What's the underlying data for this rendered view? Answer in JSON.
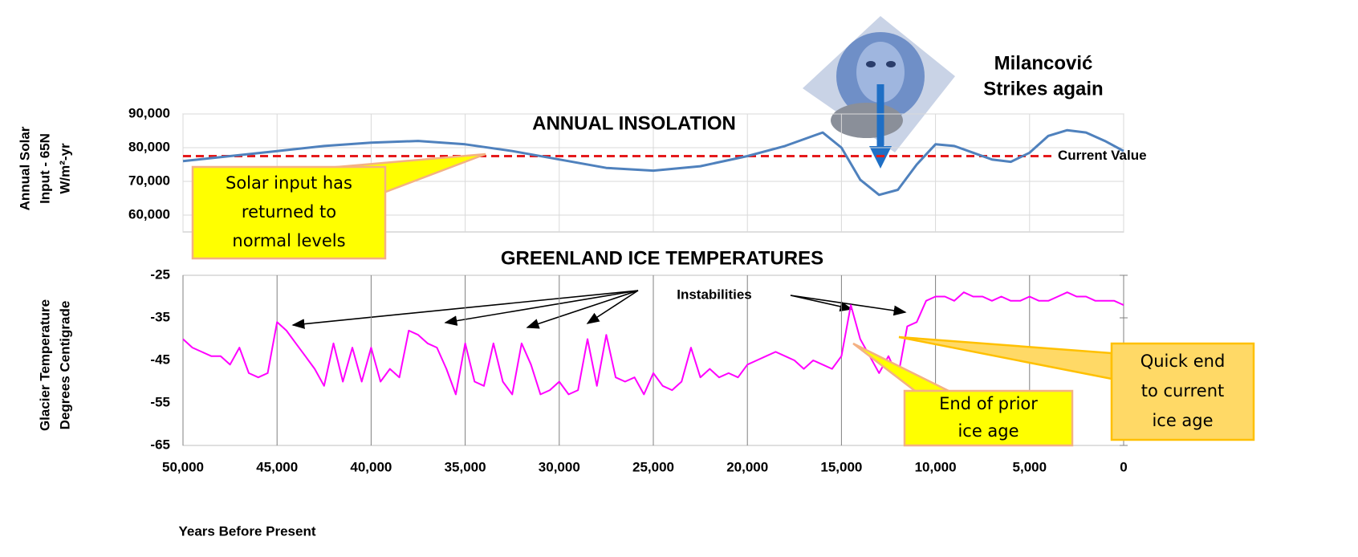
{
  "chart_data": [
    {
      "type": "line",
      "title": "ANNUAL INSOLATION",
      "ylabel": [
        "Annual Solar",
        "Input - 65N",
        "W/m²-yr"
      ],
      "x": [
        50000,
        47500,
        45000,
        42500,
        40000,
        37500,
        35000,
        32500,
        30000,
        27500,
        25000,
        22500,
        20000,
        18000,
        17000,
        16000,
        15000,
        14000,
        13000,
        12000,
        11000,
        10000,
        9000,
        8000,
        7000,
        6000,
        5000,
        4000,
        3000,
        2000,
        1000,
        0
      ],
      "values": [
        76000,
        77500,
        79000,
        80500,
        81500,
        82000,
        81000,
        79000,
        76500,
        74000,
        73200,
        74500,
        77500,
        80500,
        82500,
        84500,
        80000,
        70500,
        66000,
        67500,
        75000,
        81000,
        80500,
        78500,
        76500,
        75800,
        78500,
        83500,
        85200,
        84500,
        82000,
        79000
      ],
      "color": "#4f81bd",
      "xlim": [
        50000,
        0
      ],
      "ylim": [
        55000,
        90000
      ],
      "yticks": [
        {
          "value": 60000,
          "label": "60,000"
        },
        {
          "value": 70000,
          "label": "70,000"
        },
        {
          "value": 80000,
          "label": "80,000"
        },
        {
          "value": 90000,
          "label": "90,000"
        }
      ],
      "grid": "both",
      "reference_line": {
        "value": 77500,
        "label": "Current Value",
        "color": "#e41a1c"
      },
      "annotations": [
        {
          "lines": [
            "Solar input has",
            "returned to",
            "normal levels"
          ]
        },
        {
          "lines": [
            "Milancović",
            "Strikes again"
          ]
        }
      ]
    },
    {
      "type": "line",
      "title": "GREENLAND ICE TEMPERATURES",
      "ylabel": [
        "Glacier Temperature",
        "Degrees Centigrade"
      ],
      "xlabel": "Years Before Present",
      "x": [
        50000,
        49500,
        49000,
        48500,
        48000,
        47500,
        47000,
        46500,
        46000,
        45500,
        45000,
        44500,
        44000,
        43500,
        43000,
        42500,
        42000,
        41500,
        41000,
        40500,
        40000,
        39500,
        39000,
        38500,
        38000,
        37500,
        37000,
        36500,
        36000,
        35500,
        35000,
        34500,
        34000,
        33500,
        33000,
        32500,
        32000,
        31500,
        31000,
        30500,
        30000,
        29500,
        29000,
        28500,
        28000,
        27500,
        27000,
        26500,
        26000,
        25500,
        25000,
        24500,
        24000,
        23500,
        23000,
        22500,
        22000,
        21500,
        21000,
        20500,
        20000,
        19500,
        19000,
        18500,
        18000,
        17500,
        17000,
        16500,
        16000,
        15500,
        15000,
        14500,
        14000,
        13500,
        13000,
        12500,
        12000,
        11500,
        11000,
        10500,
        10000,
        9500,
        9000,
        8500,
        8000,
        7500,
        7000,
        6500,
        6000,
        5500,
        5000,
        4500,
        4000,
        3500,
        3000,
        2500,
        2000,
        1500,
        1000,
        500,
        0
      ],
      "values": [
        -40,
        -42,
        -43,
        -44,
        -44,
        -46,
        -42,
        -48,
        -49,
        -48,
        -36,
        -38,
        -41,
        -44,
        -47,
        -51,
        -41,
        -50,
        -42,
        -50,
        -42,
        -50,
        -47,
        -49,
        -38,
        -39,
        -41,
        -42,
        -47,
        -53,
        -41,
        -50,
        -51,
        -41,
        -50,
        -53,
        -41,
        -46,
        -53,
        -52,
        -50,
        -53,
        -52,
        -40,
        -51,
        -39,
        -49,
        -50,
        -49,
        -53,
        -48,
        -51,
        -52,
        -50,
        -42,
        -49,
        -47,
        -49,
        -48,
        -49,
        -46,
        -45,
        -44,
        -43,
        -44,
        -45,
        -47,
        -45,
        -46,
        -47,
        -44,
        -32,
        -40,
        -44,
        -48,
        -44,
        -49,
        -37,
        -36,
        -31,
        -30,
        -30,
        -31,
        -29,
        -30,
        -30,
        -31,
        -30,
        -31,
        -31,
        -30,
        -31,
        -31,
        -30,
        -29,
        -30,
        -30,
        -31,
        -31,
        -31,
        -32
      ],
      "color": "#ff00ff",
      "xlim": [
        50000,
        0
      ],
      "ylim": [
        -65,
        -25
      ],
      "xticks": [
        {
          "value": 50000,
          "label": "50,000"
        },
        {
          "value": 45000,
          "label": "45,000"
        },
        {
          "value": 40000,
          "label": "40,000"
        },
        {
          "value": 35000,
          "label": "35,000"
        },
        {
          "value": 30000,
          "label": "30,000"
        },
        {
          "value": 25000,
          "label": "25,000"
        },
        {
          "value": 20000,
          "label": "20,000"
        },
        {
          "value": 15000,
          "label": "15,000"
        },
        {
          "value": 10000,
          "label": "10,000"
        },
        {
          "value": 5000,
          "label": "5,000"
        },
        0
      ],
      "yticks": [
        -25,
        -35,
        -45,
        -55,
        -65
      ],
      "grid": "x",
      "annotations": [
        {
          "lines": [
            "Instabilities"
          ]
        },
        {
          "lines": [
            "End of prior",
            "ice age"
          ]
        },
        {
          "lines": [
            "Quick end",
            "to current",
            "ice age"
          ]
        }
      ]
    }
  ]
}
